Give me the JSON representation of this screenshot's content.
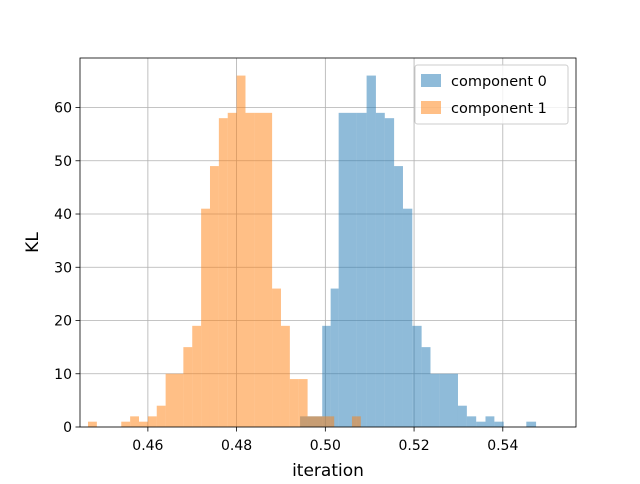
{
  "chart_data": {
    "type": "bar",
    "xlabel": "iteration",
    "ylabel": "KL",
    "xlim": [
      0.4447,
      0.5565
    ],
    "ylim": [
      0,
      69.3
    ],
    "x_ticks": [
      0.46,
      0.48,
      0.5,
      0.52,
      0.54
    ],
    "x_tick_labels": [
      "0.46",
      "0.48",
      "0.50",
      "0.52",
      "0.54"
    ],
    "y_ticks": [
      0,
      10,
      20,
      30,
      40,
      50,
      60
    ],
    "y_tick_labels": [
      "0",
      "10",
      "20",
      "30",
      "40",
      "50",
      "60"
    ],
    "grid": true,
    "legend_position": "top-right",
    "series": [
      {
        "name": "component 0",
        "color": "#1f77b4",
        "alpha": 0.5,
        "bins": [
          {
            "x0": 0.4943,
            "x1": 0.4993,
            "count": 2
          },
          {
            "x0": 0.4993,
            "x1": 0.5012,
            "count": 19
          },
          {
            "x0": 0.5012,
            "x1": 0.503,
            "count": 26
          },
          {
            "x0": 0.503,
            "x1": 0.5071,
            "count": 59
          },
          {
            "x0": 0.5071,
            "x1": 0.5093,
            "count": 59
          },
          {
            "x0": 0.5093,
            "x1": 0.5114,
            "count": 66
          },
          {
            "x0": 0.5114,
            "x1": 0.5134,
            "count": 59
          },
          {
            "x0": 0.5134,
            "x1": 0.5155,
            "count": 58
          },
          {
            "x0": 0.5155,
            "x1": 0.5175,
            "count": 49
          },
          {
            "x0": 0.5175,
            "x1": 0.5196,
            "count": 41
          },
          {
            "x0": 0.5196,
            "x1": 0.5217,
            "count": 19
          },
          {
            "x0": 0.5217,
            "x1": 0.5237,
            "count": 15
          },
          {
            "x0": 0.5237,
            "x1": 0.5258,
            "count": 10
          },
          {
            "x0": 0.5258,
            "x1": 0.5299,
            "count": 10
          },
          {
            "x0": 0.5299,
            "x1": 0.5319,
            "count": 4
          },
          {
            "x0": 0.5319,
            "x1": 0.534,
            "count": 2
          },
          {
            "x0": 0.534,
            "x1": 0.5361,
            "count": 1
          },
          {
            "x0": 0.5361,
            "x1": 0.5381,
            "count": 2
          },
          {
            "x0": 0.5381,
            "x1": 0.5402,
            "count": 1
          },
          {
            "x0": 0.5453,
            "x1": 0.5475,
            "count": 1
          }
        ]
      },
      {
        "name": "component 1",
        "color": "#ff7f0e",
        "alpha": 0.5,
        "bins": [
          {
            "x0": 0.4465,
            "x1": 0.4485,
            "count": 1
          },
          {
            "x0": 0.454,
            "x1": 0.456,
            "count": 1
          },
          {
            "x0": 0.456,
            "x1": 0.458,
            "count": 2
          },
          {
            "x0": 0.458,
            "x1": 0.46,
            "count": 1
          },
          {
            "x0": 0.46,
            "x1": 0.462,
            "count": 2
          },
          {
            "x0": 0.462,
            "x1": 0.464,
            "count": 4
          },
          {
            "x0": 0.464,
            "x1": 0.468,
            "count": 10
          },
          {
            "x0": 0.468,
            "x1": 0.47,
            "count": 15
          },
          {
            "x0": 0.47,
            "x1": 0.472,
            "count": 19
          },
          {
            "x0": 0.472,
            "x1": 0.474,
            "count": 41
          },
          {
            "x0": 0.474,
            "x1": 0.476,
            "count": 49
          },
          {
            "x0": 0.476,
            "x1": 0.478,
            "count": 58
          },
          {
            "x0": 0.478,
            "x1": 0.48,
            "count": 59
          },
          {
            "x0": 0.48,
            "x1": 0.482,
            "count": 66
          },
          {
            "x0": 0.482,
            "x1": 0.484,
            "count": 59
          },
          {
            "x0": 0.484,
            "x1": 0.488,
            "count": 59
          },
          {
            "x0": 0.488,
            "x1": 0.49,
            "count": 26
          },
          {
            "x0": 0.49,
            "x1": 0.492,
            "count": 19
          },
          {
            "x0": 0.492,
            "x1": 0.494,
            "count": 9
          },
          {
            "x0": 0.494,
            "x1": 0.496,
            "count": 9
          },
          {
            "x0": 0.496,
            "x1": 0.498,
            "count": 2
          },
          {
            "x0": 0.498,
            "x1": 0.5,
            "count": 2
          },
          {
            "x0": 0.5,
            "x1": 0.502,
            "count": 2
          },
          {
            "x0": 0.502,
            "x1": 0.504,
            "count": 0
          },
          {
            "x0": 0.504,
            "x1": 0.506,
            "count": 0
          },
          {
            "x0": 0.506,
            "x1": 0.508,
            "count": 2
          }
        ]
      }
    ]
  }
}
